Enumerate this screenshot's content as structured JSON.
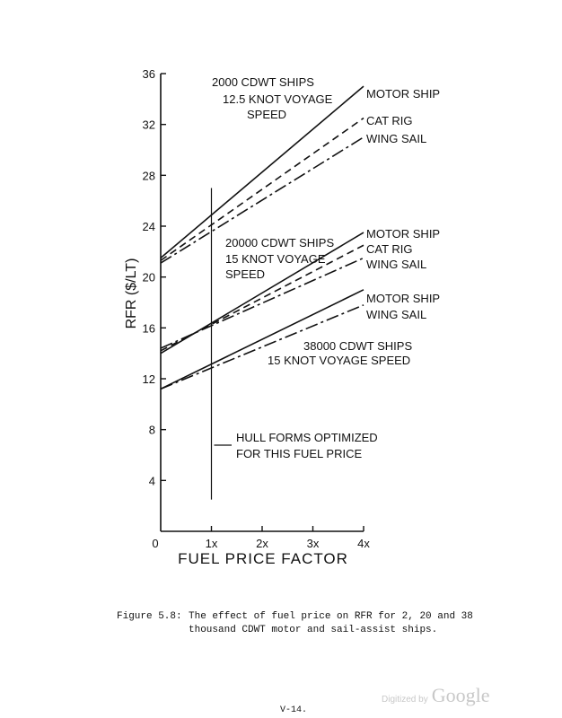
{
  "chart_data": {
    "type": "line",
    "xlabel": "FUEL PRICE FACTOR",
    "ylabel": "RFR ($/LT)",
    "xlim": [
      0,
      4
    ],
    "ylim": [
      0,
      36
    ],
    "x_ticks": [
      {
        "value": 0,
        "label": "0"
      },
      {
        "value": 1,
        "label": "1x"
      },
      {
        "value": 2,
        "label": "2x"
      },
      {
        "value": 3,
        "label": "3x"
      },
      {
        "value": 4,
        "label": "4x"
      }
    ],
    "y_ticks": [
      {
        "value": 4,
        "label": "4"
      },
      {
        "value": 8,
        "label": "8"
      },
      {
        "value": 12,
        "label": "12"
      },
      {
        "value": 16,
        "label": "16"
      },
      {
        "value": 20,
        "label": "20"
      },
      {
        "value": 24,
        "label": "24"
      },
      {
        "value": 28,
        "label": "28"
      },
      {
        "value": 32,
        "label": "32"
      },
      {
        "value": 36,
        "label": "36"
      }
    ],
    "grid": false,
    "groups": [
      {
        "label_lines": [
          "2000 CDWT SHIPS",
          "12.5 KNOT VOYAGE",
          "SPEED"
        ],
        "series": [
          {
            "name": "MOTOR SHIP",
            "style": "solid",
            "x": [
              0,
              4
            ],
            "y": [
              21.5,
              35.0
            ]
          },
          {
            "name": "CAT RIG",
            "style": "dashed",
            "x": [
              0,
              4
            ],
            "y": [
              21.3,
              32.5
            ]
          },
          {
            "name": "WING SAIL",
            "style": "dashdot",
            "x": [
              0,
              4
            ],
            "y": [
              21.1,
              31.0
            ]
          }
        ]
      },
      {
        "label_lines": [
          "20000 CDWT SHIPS",
          "15 KNOT VOYAGE",
          "SPEED"
        ],
        "series": [
          {
            "name": "MOTOR SHIP",
            "style": "solid",
            "x": [
              0,
              4
            ],
            "y": [
              14.0,
              23.5
            ]
          },
          {
            "name": "CAT RIG",
            "style": "dashed",
            "x": [
              0,
              4
            ],
            "y": [
              14.2,
              22.5
            ]
          },
          {
            "name": "WING SAIL",
            "style": "dashdot",
            "x": [
              0,
              4
            ],
            "y": [
              14.4,
              21.5
            ]
          }
        ]
      },
      {
        "label_lines": [
          "38000 CDWT SHIPS",
          "15 KNOT VOYAGE SPEED"
        ],
        "series": [
          {
            "name": "MOTOR SHIP",
            "style": "solid",
            "x": [
              0,
              4
            ],
            "y": [
              11.2,
              19.0
            ]
          },
          {
            "name": "WING SAIL",
            "style": "dashdot",
            "x": [
              0,
              4
            ],
            "y": [
              11.2,
              17.8
            ]
          }
        ]
      }
    ],
    "reference_line": {
      "x": 1,
      "y_range": [
        2.5,
        27.0
      ],
      "annotation_lines": [
        "HULL FORMS OPTIMIZED",
        "FOR THIS FUEL PRICE"
      ]
    }
  },
  "caption": {
    "label": "Figure 5.8:",
    "line1": "The effect of fuel price on RFR for 2, 20 and 38",
    "line2": "thousand CDWT motor and sail-assist ships."
  },
  "page_number": "V-14.",
  "watermark": {
    "prefix": "Digitized by",
    "brand": "Google"
  }
}
